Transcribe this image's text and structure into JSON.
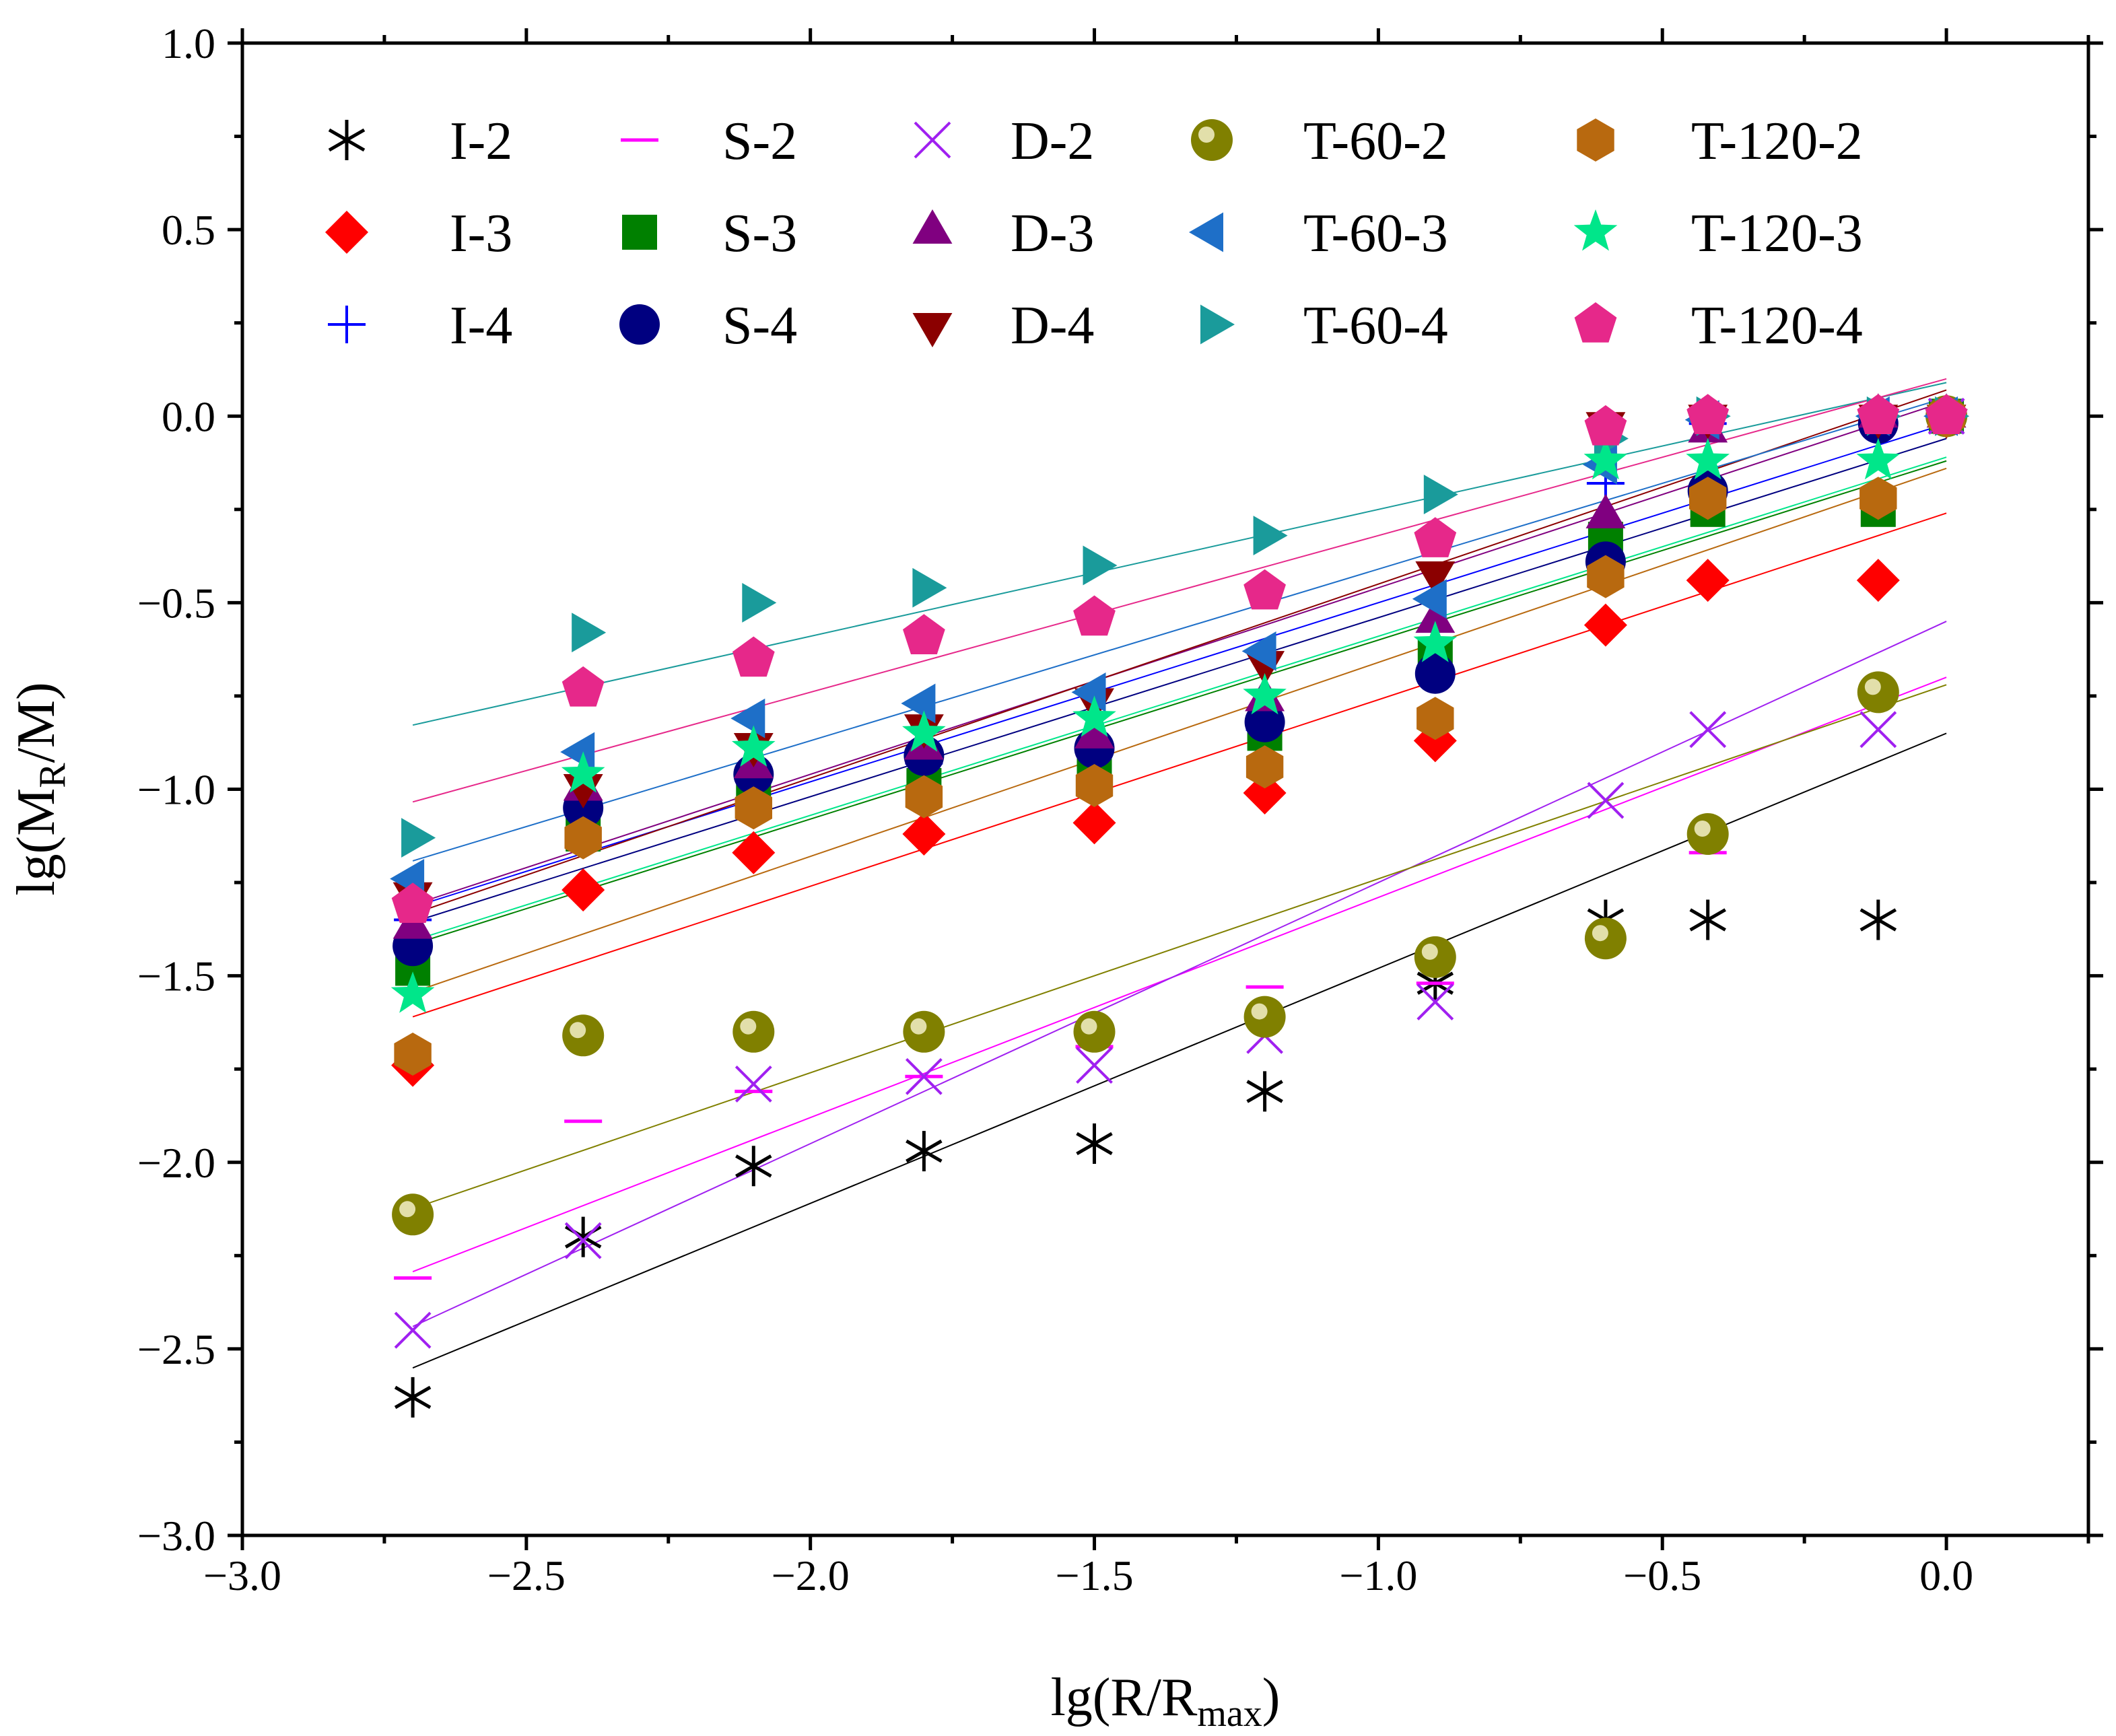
{
  "chart_data": {
    "type": "scatter",
    "xlabel": "lg(R/R",
    "xlabel_sub": "max",
    "xlabel_close": ")",
    "ylabel": "lg(M",
    "ylabel_sub": "R",
    "ylabel_close": "/M)",
    "xlim": [
      -3.0,
      0.25
    ],
    "ylim": [
      -3.0,
      1.0
    ],
    "x_ticks": [
      -3.0,
      -2.5,
      -2.0,
      -1.5,
      -1.0,
      -0.5,
      0.0
    ],
    "x_tick_labels": [
      "−3.0",
      "−2.5",
      "−2.0",
      "−1.5",
      "−1.0",
      "−0.5",
      "0.0"
    ],
    "y_ticks": [
      -3.0,
      -2.5,
      -2.0,
      -1.5,
      -1.0,
      -0.5,
      0.0,
      0.5,
      1.0
    ],
    "y_tick_labels": [
      "−3.0",
      "−2.5",
      "−2.0",
      "−1.5",
      "−1.0",
      "−0.5",
      "0.0",
      "0.5",
      "1.0"
    ],
    "x": [
      -2.7,
      -2.4,
      -2.1,
      -1.8,
      -1.5,
      -1.2,
      -0.9,
      -0.6,
      -0.42,
      -0.12,
      0.0
    ],
    "grid": false,
    "legend_position": "top",
    "series": [
      {
        "name": "I-2",
        "marker": "asterisk",
        "color": "#000000",
        "values": [
          -2.63,
          -2.2,
          -2.01,
          -1.97,
          -1.95,
          -1.81,
          -1.52,
          -1.35,
          -1.35,
          -1.35,
          0.0
        ],
        "fit": {
          "slope": 0.63,
          "intercept": -0.85
        }
      },
      {
        "name": "I-3",
        "marker": "diamond",
        "color": "#ff0000",
        "values": [
          -1.74,
          -1.27,
          -1.17,
          -1.12,
          -1.09,
          -1.01,
          -0.87,
          -0.56,
          -0.44,
          -0.44,
          0.0
        ],
        "fit": {
          "slope": 0.5,
          "intercept": -0.26
        }
      },
      {
        "name": "I-4",
        "marker": "plus",
        "color": "#0000ff",
        "values": [
          -1.35,
          -1.03,
          -0.97,
          -0.93,
          -0.9,
          -0.84,
          -0.69,
          -0.18,
          -0.02,
          -0.01,
          0.0
        ],
        "fit": {
          "slope": 0.48,
          "intercept": -0.02
        }
      },
      {
        "name": "S-2",
        "marker": "dash",
        "color": "#ff00ff",
        "values": [
          -2.31,
          -1.89,
          -1.81,
          -1.77,
          -1.69,
          -1.53,
          -1.52,
          -1.39,
          -1.17,
          -0.75,
          0.0
        ],
        "fit": {
          "slope": 0.59,
          "intercept": -0.7
        }
      },
      {
        "name": "S-3",
        "marker": "square",
        "color": "#008000",
        "values": [
          -1.48,
          -1.12,
          -1.03,
          -0.99,
          -0.92,
          -0.85,
          -0.64,
          -0.33,
          -0.25,
          -0.25,
          0.0
        ],
        "fit": {
          "slope": 0.48,
          "intercept": -0.12
        }
      },
      {
        "name": "S-4",
        "marker": "circle",
        "color": "#000080",
        "values": [
          -1.42,
          -1.05,
          -0.96,
          -0.91,
          -0.89,
          -0.82,
          -0.69,
          -0.39,
          -0.2,
          -0.02,
          0.0
        ],
        "fit": {
          "slope": 0.48,
          "intercept": -0.06
        }
      },
      {
        "name": "D-2",
        "marker": "x",
        "color": "#a020f0",
        "values": [
          -2.45,
          -2.21,
          -1.79,
          -1.77,
          -1.74,
          -1.66,
          -1.57,
          -1.03,
          -0.84,
          -0.84,
          0.0
        ],
        "fit": {
          "slope": 0.7,
          "intercept": -0.55
        }
      },
      {
        "name": "D-3",
        "marker": "triangle-up",
        "color": "#800080",
        "values": [
          -1.37,
          -1.0,
          -0.94,
          -0.89,
          -0.86,
          -0.76,
          -0.55,
          -0.27,
          -0.04,
          0.0,
          0.0
        ],
        "fit": {
          "slope": 0.5,
          "intercept": 0.04
        }
      },
      {
        "name": "D-4",
        "marker": "triangle-down",
        "color": "#8b0000",
        "values": [
          -1.28,
          -0.99,
          -0.88,
          -0.83,
          -0.76,
          -0.66,
          -0.42,
          -0.02,
          0.0,
          0.0,
          0.0
        ],
        "fit": {
          "slope": 0.52,
          "intercept": 0.07
        }
      },
      {
        "name": "T-60-2",
        "marker": "sphere",
        "color": "#808000",
        "values": [
          -2.14,
          -1.66,
          -1.65,
          -1.65,
          -1.65,
          -1.61,
          -1.45,
          -1.4,
          -1.12,
          -0.74,
          0.0
        ],
        "fit": {
          "slope": 0.52,
          "intercept": -0.72
        }
      },
      {
        "name": "T-60-3",
        "marker": "triangle-left",
        "color": "#1e6fc8",
        "values": [
          -1.24,
          -0.9,
          -0.81,
          -0.77,
          -0.74,
          -0.63,
          -0.49,
          -0.13,
          -0.01,
          0.0,
          0.0
        ],
        "fit": {
          "slope": 0.46,
          "intercept": 0.05
        }
      },
      {
        "name": "T-60-4",
        "marker": "triangle-right",
        "color": "#1a9b9b",
        "values": [
          -1.13,
          -0.58,
          -0.5,
          -0.46,
          -0.4,
          -0.32,
          -0.21,
          -0.06,
          0.0,
          0.0,
          0.0
        ],
        "fit": {
          "slope": 0.34,
          "intercept": 0.09
        }
      },
      {
        "name": "T-120-2",
        "marker": "hexagon",
        "color": "#b8690f",
        "values": [
          -1.71,
          -1.13,
          -1.05,
          -1.02,
          -0.99,
          -0.94,
          -0.81,
          -0.43,
          -0.22,
          -0.22,
          0.0
        ],
        "fit": {
          "slope": 0.52,
          "intercept": -0.14
        }
      },
      {
        "name": "T-120-3",
        "marker": "star",
        "color": "#00e68a",
        "values": [
          -1.55,
          -0.96,
          -0.89,
          -0.85,
          -0.81,
          -0.75,
          -0.61,
          -0.12,
          -0.12,
          -0.12,
          0.0
        ],
        "fit": {
          "slope": 0.48,
          "intercept": -0.11
        }
      },
      {
        "name": "T-120-4",
        "marker": "pentagon",
        "color": "#e6288a",
        "values": [
          -1.31,
          -0.73,
          -0.65,
          -0.59,
          -0.54,
          -0.47,
          -0.33,
          -0.03,
          0.0,
          0.0,
          0.0
        ],
        "fit": {
          "slope": 0.42,
          "intercept": 0.1
        }
      }
    ]
  }
}
